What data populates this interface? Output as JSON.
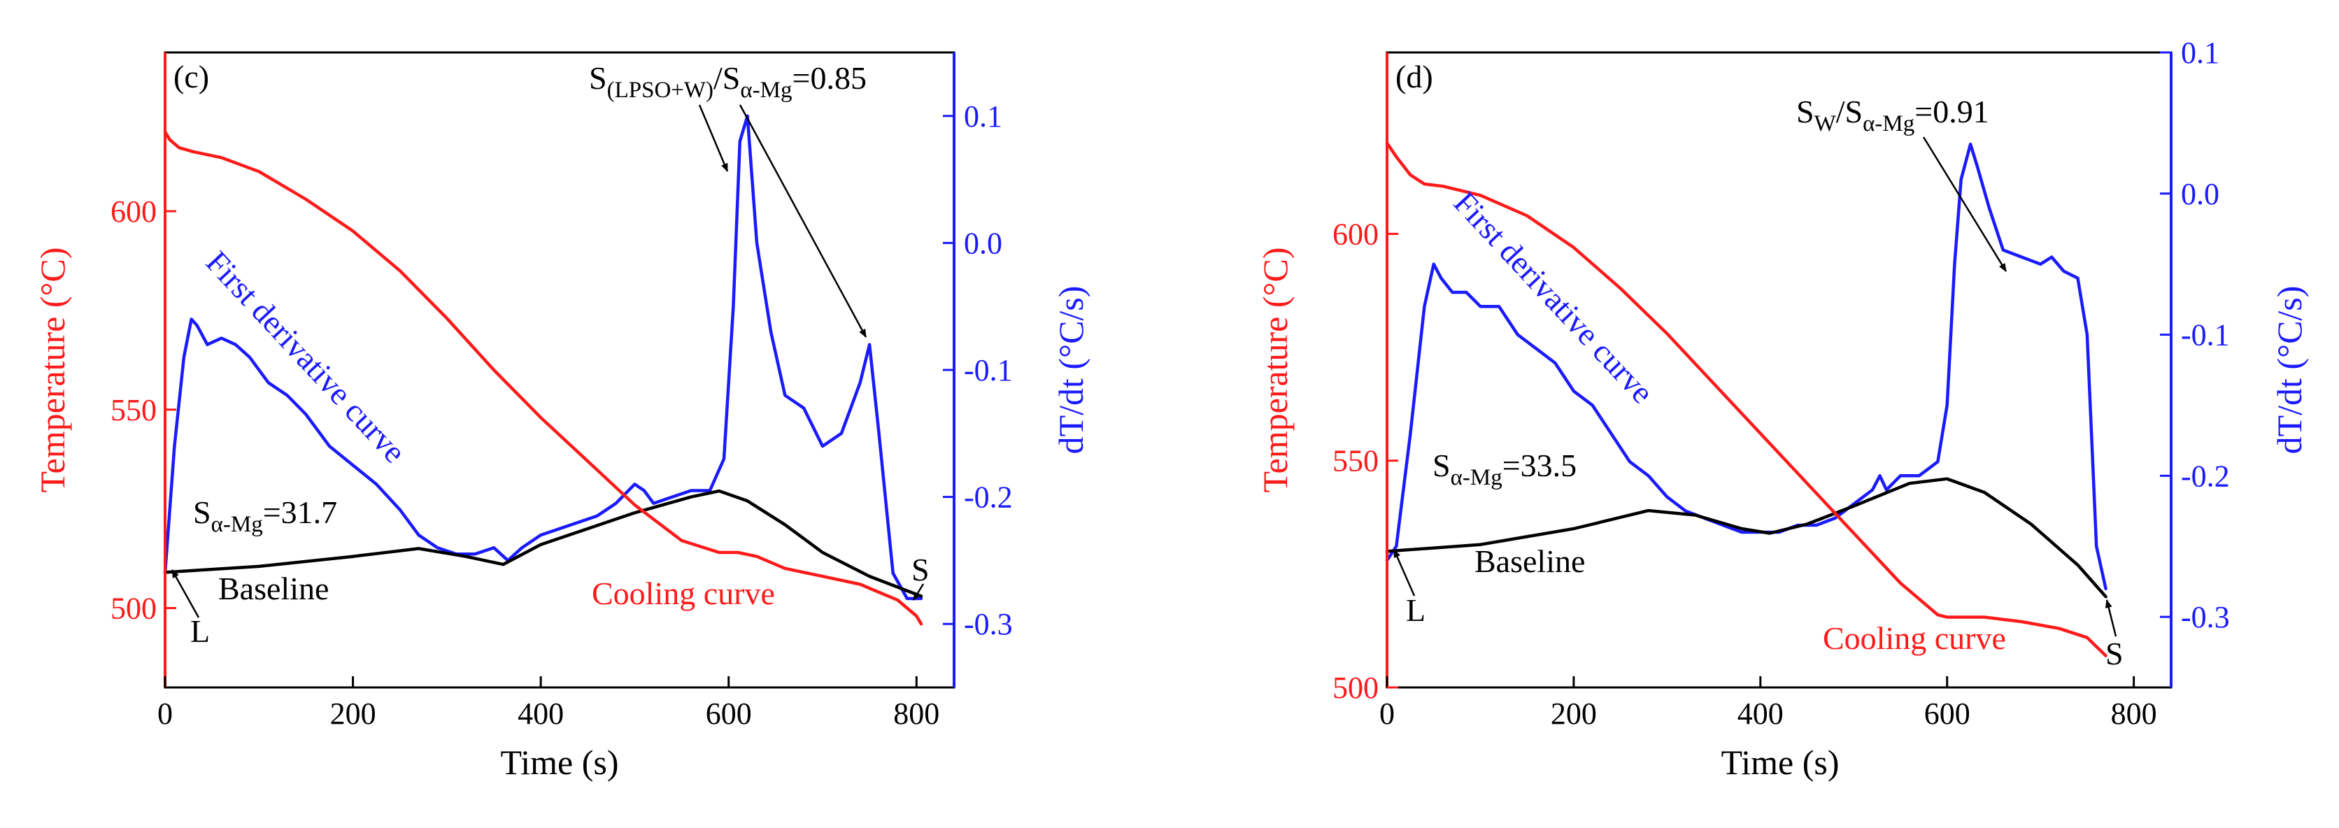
{
  "chart_data": [
    {
      "type": "line",
      "panel_label": "(c)",
      "xlabel": "Time (s)",
      "ylabel_left": "Temperature (°C)",
      "ylabel_right": "dT/dt (°C/s)",
      "xlim": [
        0,
        840
      ],
      "ylim_left": [
        480,
        640
      ],
      "ylim_right": [
        -0.35,
        0.15
      ],
      "x_ticks": [
        0,
        200,
        400,
        600,
        800
      ],
      "y_left_ticks": [
        500,
        550,
        600
      ],
      "y_right_ticks": [
        -0.3,
        -0.2,
        -0.1,
        0.0,
        0.1
      ],
      "x_tick_labels": [
        "0",
        "200",
        "400",
        "600",
        "800"
      ],
      "y_left_tick_labels": [
        "500",
        "550",
        "600"
      ],
      "y_right_tick_labels": [
        "-0.3",
        "-0.2",
        "-0.1",
        "0.0",
        "0.1"
      ],
      "colors": {
        "cooling": "#ff1a1a",
        "derivative": "#1a1aff",
        "baseline": "#000000",
        "right_axis": "#1a1aff",
        "left_axis": "#ff1a1a"
      },
      "series": [
        {
          "name": "Cooling curve",
          "axis": "left",
          "color": "#ff1a1a",
          "x": [
            0,
            5,
            15,
            30,
            60,
            100,
            150,
            200,
            250,
            300,
            350,
            400,
            450,
            500,
            550,
            590,
            610,
            630,
            660,
            700,
            740,
            780,
            800,
            805
          ],
          "y": [
            620,
            618,
            616,
            615,
            613.5,
            610,
            603,
            595,
            585,
            573,
            560,
            548,
            537,
            526,
            517,
            514,
            514,
            513,
            510,
            508,
            506,
            502,
            498,
            496
          ]
        },
        {
          "name": "First derivative curve",
          "axis": "right",
          "color": "#1a1aff",
          "x": [
            0,
            10,
            20,
            28,
            34,
            45,
            60,
            75,
            90,
            110,
            130,
            150,
            175,
            200,
            225,
            250,
            270,
            290,
            310,
            330,
            350,
            365,
            380,
            400,
            420,
            440,
            460,
            480,
            500,
            510,
            520,
            540,
            560,
            580,
            595,
            605,
            612,
            620,
            630,
            645,
            660,
            680,
            700,
            720,
            740,
            750,
            760,
            775,
            790,
            805
          ],
          "y": [
            -0.26,
            -0.16,
            -0.09,
            -0.06,
            -0.065,
            -0.08,
            -0.075,
            -0.08,
            -0.09,
            -0.11,
            -0.12,
            -0.135,
            -0.16,
            -0.175,
            -0.19,
            -0.21,
            -0.23,
            -0.24,
            -0.245,
            -0.245,
            -0.24,
            -0.25,
            -0.24,
            -0.23,
            -0.225,
            -0.22,
            -0.215,
            -0.205,
            -0.19,
            -0.195,
            -0.205,
            -0.2,
            -0.195,
            -0.195,
            -0.17,
            -0.05,
            0.08,
            0.1,
            0.0,
            -0.07,
            -0.12,
            -0.13,
            -0.16,
            -0.15,
            -0.11,
            -0.08,
            -0.15,
            -0.26,
            -0.28,
            -0.28
          ]
        },
        {
          "name": "Baseline",
          "axis": "left",
          "color": "#000000",
          "x": [
            0,
            100,
            200,
            270,
            320,
            360,
            400,
            450,
            500,
            560,
            590,
            620,
            660,
            700,
            750,
            805
          ],
          "y": [
            509,
            510.5,
            513,
            515,
            513,
            511,
            516,
            520,
            524,
            528,
            529.5,
            527,
            521,
            514,
            508,
            503
          ]
        }
      ],
      "annotations": {
        "ratio_main": "S",
        "ratio_sub1": "(LPSO+W)",
        "ratio_mid": "/S",
        "ratio_sub2": "α-Mg",
        "ratio_val": "=0.85",
        "s_alpha_main": "S",
        "s_alpha_sub": "α-Mg",
        "s_alpha_val": "=31.7",
        "baseline_label": "Baseline",
        "cooling_label": "Cooling curve",
        "derivative_label": "First derivative curve",
        "L_label": "L",
        "S_label": "S"
      }
    },
    {
      "type": "line",
      "panel_label": "(d)",
      "xlabel": "Time (s)",
      "ylabel_left": "Temperature (°C)",
      "ylabel_right": "dT/dt (°C/s)",
      "xlim": [
        0,
        840
      ],
      "ylim_left": [
        500,
        640
      ],
      "ylim_right": [
        -0.35,
        0.1
      ],
      "x_ticks": [
        0,
        200,
        400,
        600,
        800
      ],
      "y_left_ticks": [
        500,
        550,
        600
      ],
      "y_right_ticks": [
        -0.3,
        -0.2,
        -0.1,
        0.0,
        0.1
      ],
      "x_tick_labels": [
        "0",
        "200",
        "400",
        "600",
        "800"
      ],
      "y_left_tick_labels": [
        "500",
        "550",
        "600"
      ],
      "y_right_tick_labels": [
        "-0.3",
        "-0.2",
        "-0.1",
        "0.0",
        "0.1"
      ],
      "colors": {
        "cooling": "#ff1a1a",
        "derivative": "#1a1aff",
        "baseline": "#000000",
        "right_axis": "#1a1aff",
        "left_axis": "#ff1a1a"
      },
      "series": [
        {
          "name": "Cooling curve",
          "axis": "left",
          "color": "#ff1a1a",
          "x": [
            0,
            10,
            25,
            40,
            60,
            100,
            150,
            200,
            250,
            300,
            350,
            400,
            450,
            500,
            550,
            590,
            600,
            615,
            640,
            680,
            720,
            750,
            770
          ],
          "y": [
            620,
            617,
            613,
            611,
            610.5,
            608.5,
            604,
            597,
            588,
            578,
            567,
            556,
            545,
            534,
            523,
            516,
            515.5,
            515.5,
            515.5,
            514.5,
            513,
            511,
            507
          ]
        },
        {
          "name": "First derivative curve",
          "axis": "right",
          "color": "#1a1aff",
          "x": [
            0,
            10,
            25,
            40,
            50,
            58,
            70,
            85,
            100,
            120,
            140,
            160,
            180,
            200,
            220,
            240,
            260,
            280,
            300,
            320,
            340,
            360,
            380,
            400,
            420,
            440,
            460,
            480,
            500,
            520,
            528,
            535,
            550,
            570,
            590,
            600,
            608,
            615,
            625,
            632,
            645,
            660,
            680,
            700,
            712,
            725,
            740,
            750,
            760,
            770
          ],
          "y": [
            -0.26,
            -0.25,
            -0.17,
            -0.08,
            -0.05,
            -0.06,
            -0.07,
            -0.07,
            -0.08,
            -0.08,
            -0.1,
            -0.11,
            -0.12,
            -0.14,
            -0.15,
            -0.17,
            -0.19,
            -0.2,
            -0.215,
            -0.225,
            -0.23,
            -0.235,
            -0.24,
            -0.24,
            -0.24,
            -0.235,
            -0.235,
            -0.23,
            -0.22,
            -0.21,
            -0.2,
            -0.21,
            -0.2,
            -0.2,
            -0.19,
            -0.15,
            -0.05,
            0.01,
            0.035,
            0.02,
            -0.01,
            -0.04,
            -0.045,
            -0.05,
            -0.045,
            -0.055,
            -0.06,
            -0.1,
            -0.25,
            -0.28
          ]
        },
        {
          "name": "Baseline",
          "axis": "left",
          "color": "#000000",
          "x": [
            0,
            100,
            200,
            280,
            330,
            380,
            410,
            450,
            500,
            560,
            600,
            640,
            690,
            740,
            770
          ],
          "y": [
            530,
            531.5,
            535,
            539,
            538,
            535,
            534,
            536,
            540,
            545,
            546,
            543,
            536,
            527,
            520
          ]
        }
      ],
      "annotations": {
        "ratio_main": "S",
        "ratio_sub1": "W",
        "ratio_mid": "/S",
        "ratio_sub2": "α-Mg",
        "ratio_val": "=0.91",
        "s_alpha_main": "S",
        "s_alpha_sub": "α-Mg",
        "s_alpha_val": "=33.5",
        "baseline_label": "Baseline",
        "cooling_label": "Cooling curve",
        "derivative_label": "First derivative curve",
        "L_label": "L",
        "S_label": "S"
      }
    }
  ]
}
